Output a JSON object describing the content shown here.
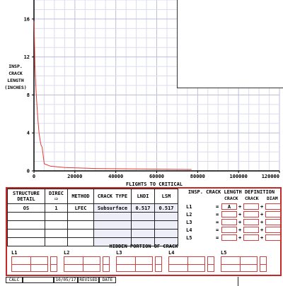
{
  "chart_data": {
    "type": "line",
    "xlabel": "FLIGHTS TO CRITICAL",
    "ylabel_lines": [
      "INSP.",
      "CRACK",
      "LENGTH",
      "(INCHES)"
    ],
    "xlim": [
      0,
      120000
    ],
    "ylim": [
      0,
      18
    ],
    "x_ticks": [
      "0",
      "20000",
      "40000",
      "60000",
      "80000",
      "100000",
      "120000"
    ],
    "x_tick_values": [
      0,
      20000,
      40000,
      60000,
      80000,
      100000,
      120000
    ],
    "y_ticks": [
      "0",
      "4",
      "8",
      "12",
      "16"
    ],
    "y_tick_values": [
      0,
      4,
      8,
      12,
      16
    ],
    "grid": true,
    "series": [
      {
        "color": "#e53935",
        "x": [
          0,
          200,
          500,
          1000,
          1500,
          2000,
          2500,
          3000,
          3500,
          4000,
          5000,
          8000,
          15000,
          30000,
          50000,
          77000
        ],
        "y": [
          15.8,
          14.0,
          11.2,
          8.5,
          6.8,
          5.2,
          4.0,
          3.2,
          2.7,
          2.5,
          0.75,
          0.5,
          0.35,
          0.25,
          0.2,
          0.15
        ]
      }
    ]
  },
  "form": {
    "headers": [
      "STRUCTURE DETAIL",
      "DIREC",
      "METHOD",
      "CRACK TYPE",
      "LNDI",
      "LSM"
    ],
    "row": {
      "detail": "OS",
      "direc": "1",
      "method": "LFEC",
      "crack_type": "Subsurface",
      "lndi": "0.517",
      "lsm": "0.517"
    },
    "defn_title": "INSP. CRACK LENGTH DEFINITION",
    "defn_headers": [
      "CRACK",
      "CRACK",
      "DIAM"
    ],
    "l_labels": [
      "L1",
      "L2",
      "L3",
      "L4",
      "L5"
    ],
    "first_crack_value": "A",
    "hidden_title": "HIDDEN PORTION OF CRACK"
  },
  "footer": {
    "calc": "CALC",
    "date": "10/05/17",
    "revised": "REVISED",
    "date_label": "DATE"
  }
}
